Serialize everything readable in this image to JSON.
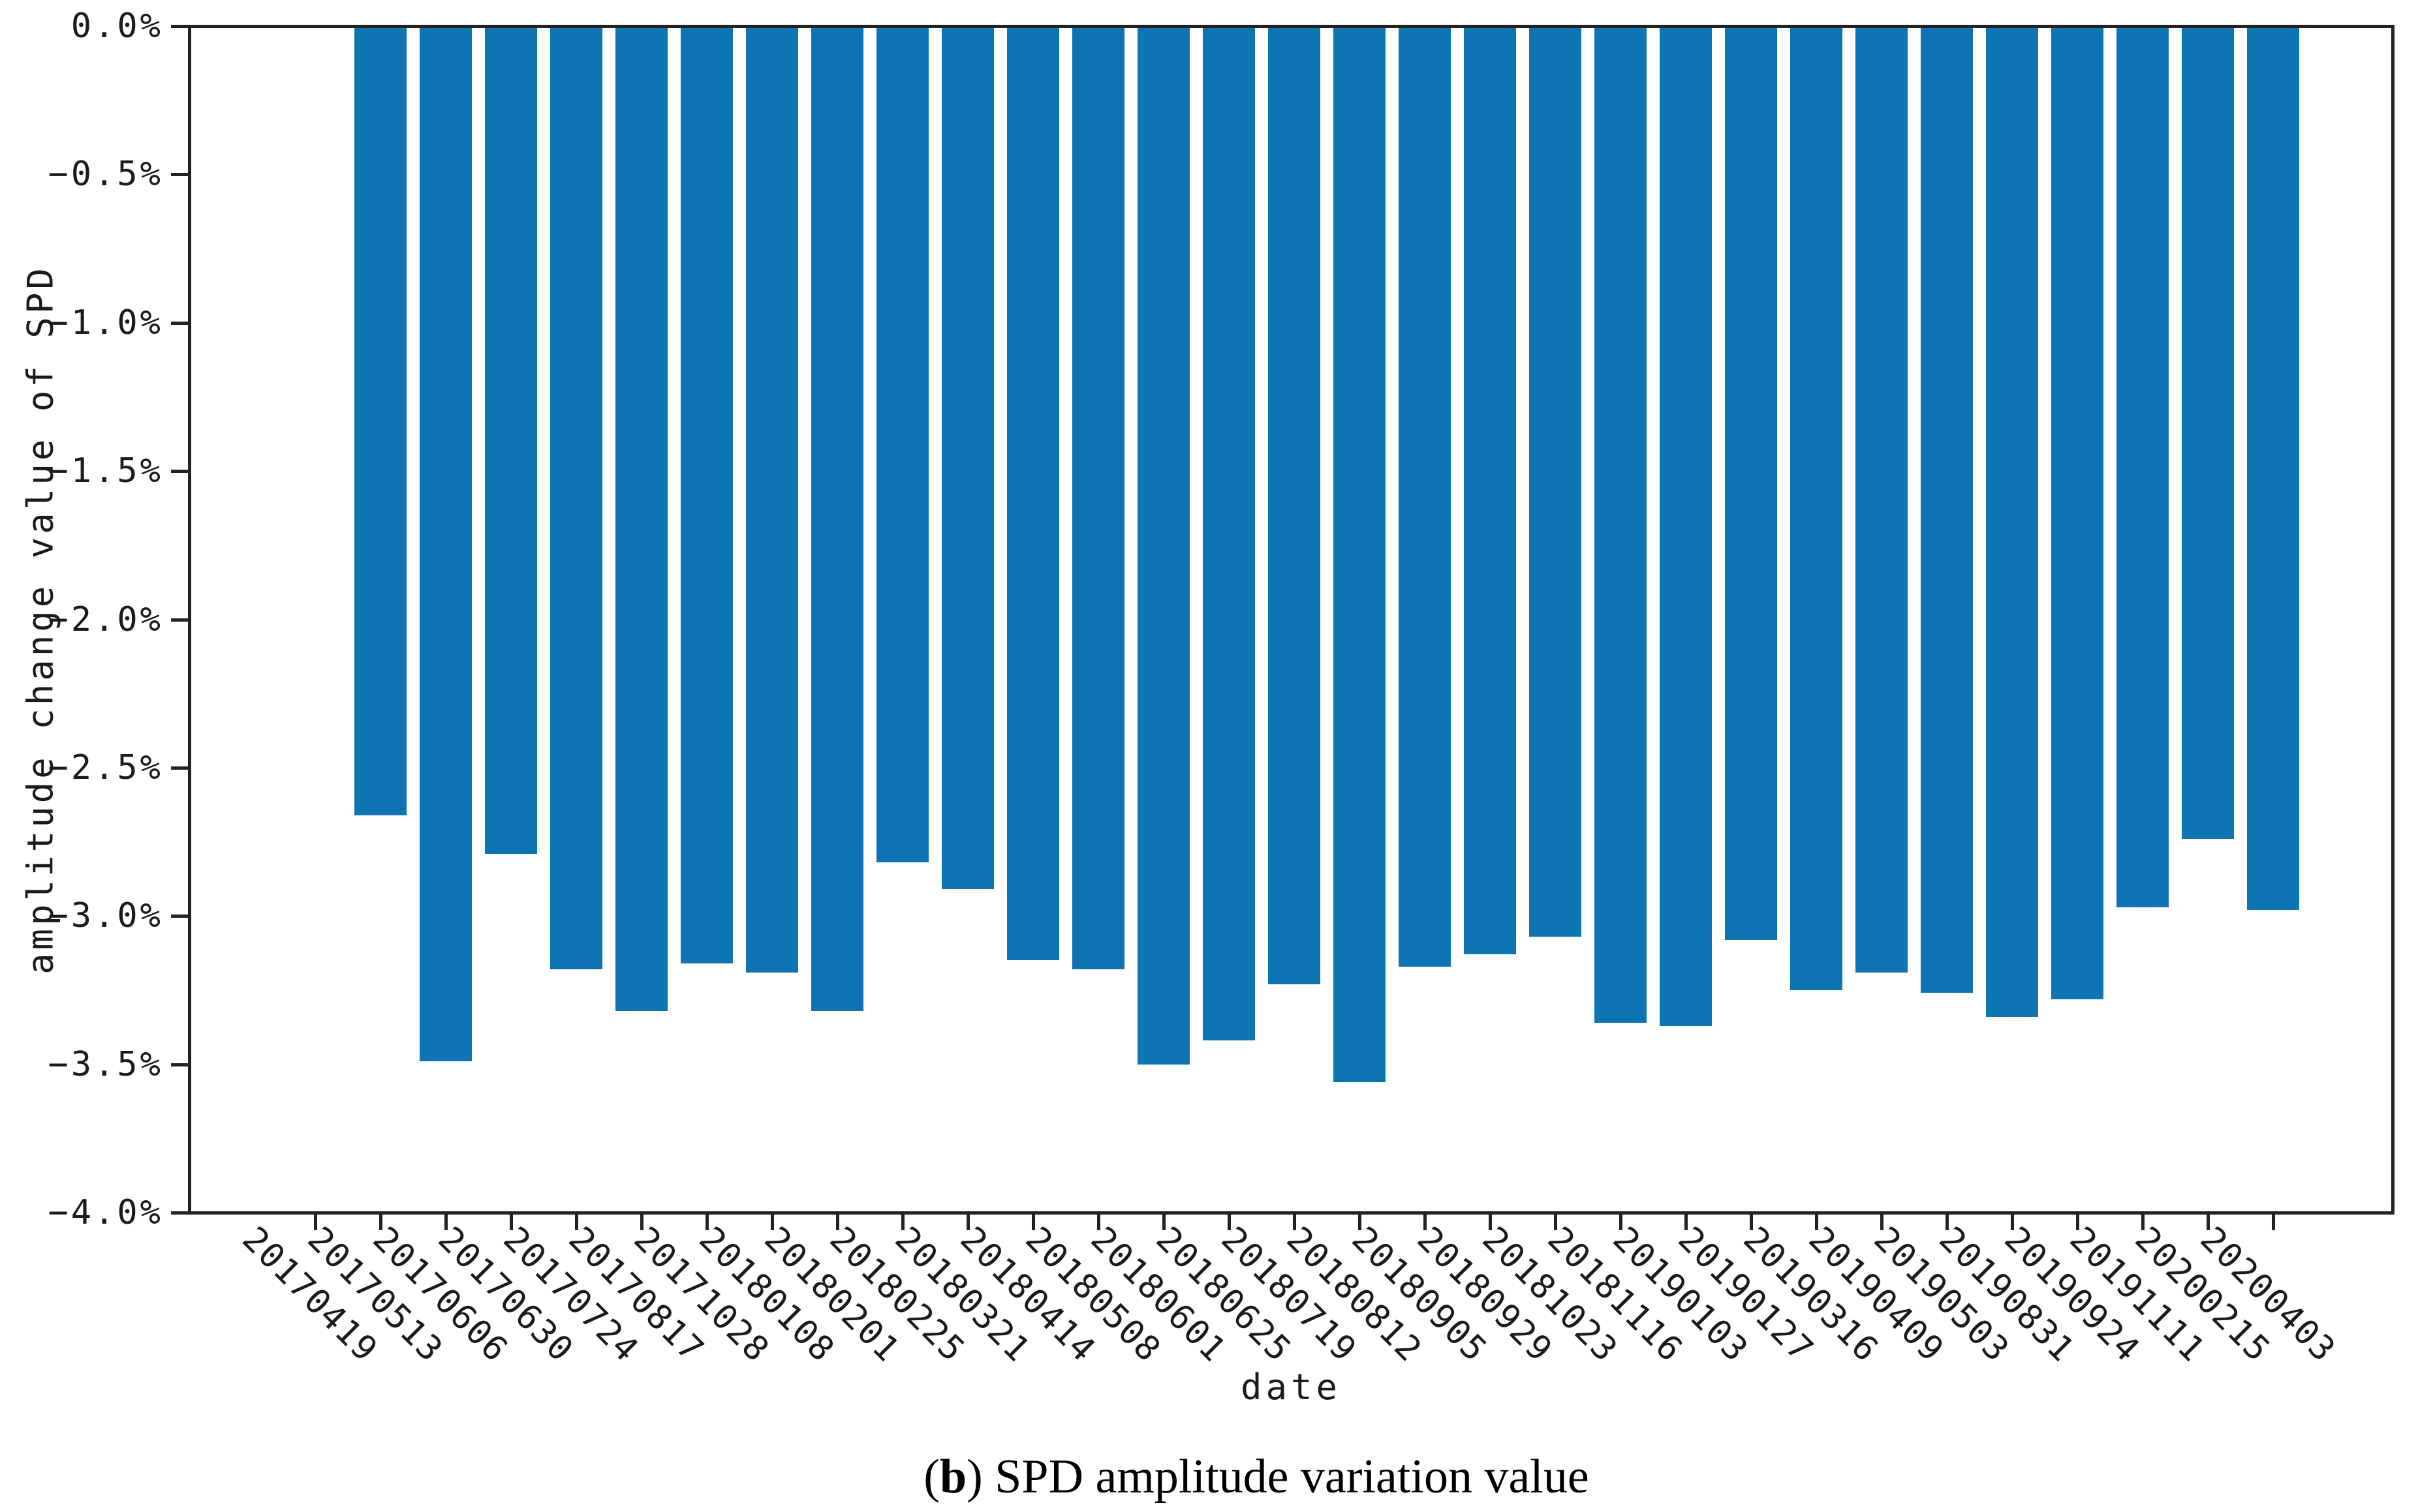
{
  "figure": {
    "caption_open": "(",
    "caption_bold": "b",
    "caption_rest": ") SPD amplitude variation value"
  },
  "chart_data": {
    "type": "bar",
    "title": "",
    "xlabel": "date",
    "ylabel": "amplitude change value of SPD",
    "legend": null,
    "grid": false,
    "bar_color": "#0E74B4",
    "axis_color": "#222222",
    "ylim": [
      -4.0,
      0.0
    ],
    "ytick_labels": [
      "0.0%",
      "−0.5%",
      "−1.0%",
      "−1.5%",
      "−2.0%",
      "−2.5%",
      "−3.0%",
      "−3.5%",
      "−4.0%"
    ],
    "categories": [
      "20170419",
      "20170513",
      "20170606",
      "20170630",
      "20170724",
      "20170817",
      "20171028",
      "20180108",
      "20180201",
      "20180225",
      "20180321",
      "20180414",
      "20180508",
      "20180601",
      "20180625",
      "20180719",
      "20180812",
      "20180905",
      "20180929",
      "20181023",
      "20181116",
      "20190103",
      "20190127",
      "20190316",
      "20190409",
      "20190503",
      "20190831",
      "20190924",
      "20191111",
      "20200215",
      "20200403"
    ],
    "values": [
      null,
      -2.66,
      -3.49,
      -2.79,
      -3.18,
      -3.32,
      -3.16,
      -3.19,
      -3.32,
      -2.82,
      -2.91,
      -3.15,
      -3.18,
      -3.5,
      -3.42,
      -3.23,
      -3.56,
      -3.17,
      -3.13,
      -3.07,
      -3.36,
      -3.37,
      -3.08,
      -3.25,
      -3.19,
      -3.26,
      -3.34,
      -3.28,
      -2.97,
      -2.74,
      -2.98
    ],
    "values_unit": "%"
  }
}
